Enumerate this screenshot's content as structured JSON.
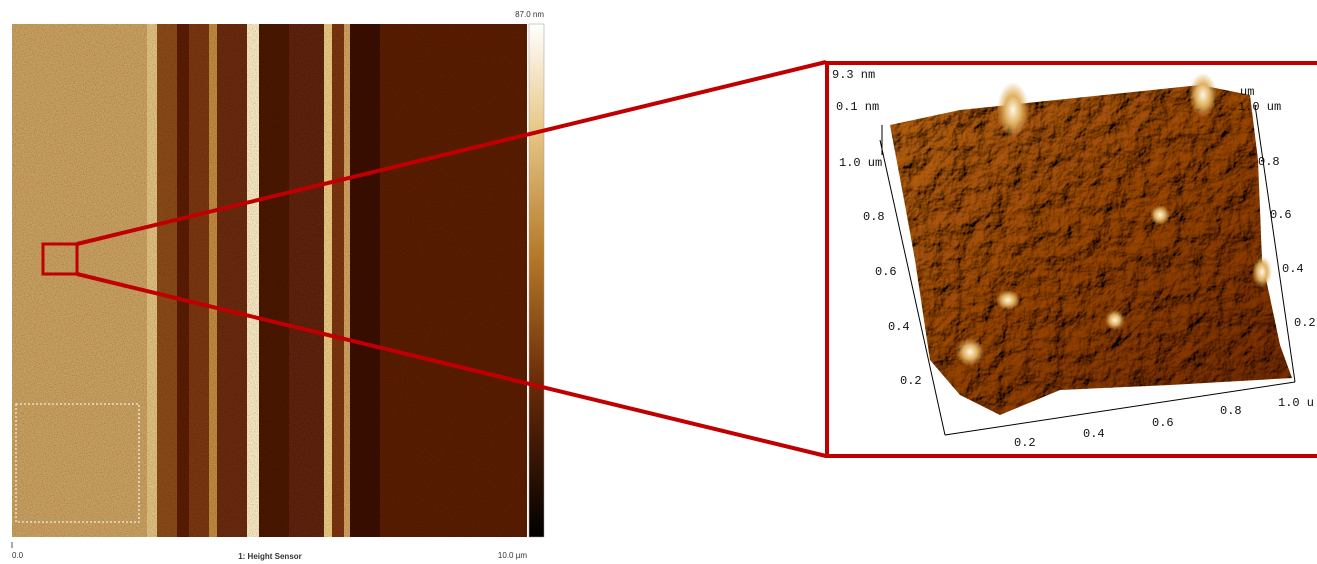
{
  "main_image": {
    "scale_max": "87.0 nm",
    "axis_start": "0.0",
    "axis_end": "10.0 µm",
    "channel": "1: Height Sensor"
  },
  "inset": {
    "z_max": "9.3 nm",
    "z_min": "0.1 nm",
    "left_axis_unit": "1.0 um",
    "top_right_labels": [
      "um",
      "1.0 um"
    ],
    "left_ticks": [
      "0.8",
      "0.6",
      "0.4",
      "0.2"
    ],
    "right_ticks": [
      "0.8",
      "0.6",
      "0.4",
      "0.2"
    ],
    "bottom_ticks": [
      "0.2",
      "0.4",
      "0.6",
      "0.8",
      "1.0 u"
    ]
  }
}
